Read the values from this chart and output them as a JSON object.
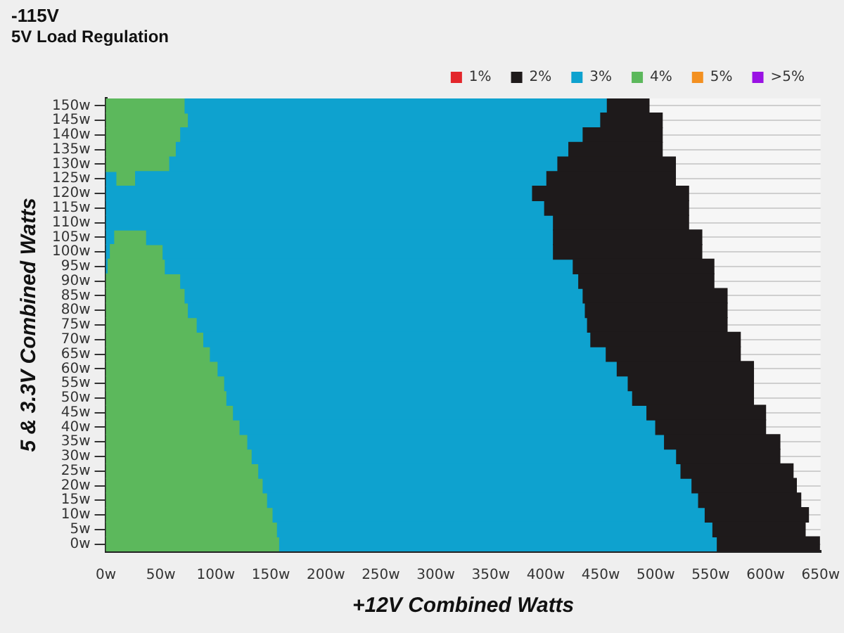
{
  "chart_data": {
    "type": "bar",
    "orientation": "horizontal",
    "title": "-115V",
    "subtitle": "5V Load Regulation",
    "xlabel": "+12V Combined Watts",
    "ylabel": "5 & 3.3V Combined Watts",
    "categories": [
      "150w",
      "145w",
      "140w",
      "135w",
      "130w",
      "125w",
      "120w",
      "115w",
      "110w",
      "105w",
      "100w",
      "95w",
      "90w",
      "85w",
      "80w",
      "75w",
      "70w",
      "65w",
      "60w",
      "55w",
      "50w",
      "45w",
      "40w",
      "35w",
      "30w",
      "25w",
      "20w",
      "15w",
      "10w",
      "5w",
      "0w"
    ],
    "series": [
      {
        "name": "1%",
        "color": "#e3262b",
        "values": [
          null,
          null,
          null,
          null,
          null,
          null,
          null,
          null,
          null,
          null,
          null,
          null,
          null,
          null,
          null,
          null,
          null,
          null,
          null,
          null,
          null,
          null,
          null,
          null,
          null,
          null,
          null,
          null,
          null,
          null,
          null
        ]
      },
      {
        "name": "2%",
        "color": "#1e1a1b",
        "base": [
          456,
          450,
          434,
          421,
          411,
          401,
          388,
          399,
          407,
          407,
          407,
          425,
          430,
          434,
          436,
          438,
          441,
          455,
          465,
          475,
          479,
          492,
          500,
          508,
          519,
          523,
          533,
          539,
          545,
          552,
          556
        ],
        "values": [
          38,
          56,
          72,
          85,
          107,
          117,
          142,
          131,
          123,
          135,
          135,
          128,
          123,
          131,
          129,
          127,
          136,
          122,
          124,
          114,
          110,
          108,
          100,
          105,
          94,
          102,
          95,
          93,
          94,
          84,
          93
        ]
      },
      {
        "name": "3%",
        "color": "#0ea2cf",
        "base": [
          72,
          75,
          68,
          64,
          58,
          27,
          0,
          0,
          0,
          37,
          52,
          54,
          68,
          72,
          75,
          83,
          89,
          95,
          102,
          108,
          110,
          116,
          122,
          129,
          133,
          139,
          143,
          147,
          152,
          156,
          158
        ],
        "values": [
          384,
          375,
          366,
          357,
          353,
          374,
          388,
          399,
          407,
          370,
          355,
          371,
          362,
          362,
          361,
          355,
          352,
          360,
          363,
          367,
          369,
          376,
          378,
          379,
          386,
          384,
          390,
          392,
          393,
          396,
          398
        ]
      },
      {
        "name": "4%",
        "color": "#5cb85c",
        "base": [
          0,
          0,
          0,
          0,
          0,
          10,
          null,
          null,
          null,
          8,
          4,
          2,
          0,
          0,
          0,
          0,
          0,
          0,
          0,
          0,
          0,
          0,
          0,
          0,
          0,
          0,
          0,
          0,
          0,
          0,
          0
        ],
        "values": [
          72,
          75,
          68,
          64,
          58,
          17,
          null,
          null,
          null,
          29,
          48,
          52,
          68,
          72,
          75,
          83,
          89,
          95,
          102,
          108,
          110,
          116,
          122,
          129,
          133,
          139,
          143,
          147,
          152,
          156,
          158
        ]
      },
      {
        "name": "5%",
        "color": "#f39020",
        "values": [
          null,
          null,
          null,
          null,
          null,
          null,
          null,
          null,
          null,
          null,
          null,
          null,
          null,
          null,
          null,
          null,
          null,
          null,
          null,
          null,
          null,
          null,
          null,
          null,
          null,
          null,
          null,
          null,
          null,
          null,
          null
        ]
      },
      {
        "name": ">5%",
        "color": "#9a12e4",
        "values": [
          null,
          null,
          null,
          null,
          null,
          null,
          null,
          null,
          null,
          null,
          null,
          null,
          null,
          null,
          null,
          null,
          null,
          null,
          null,
          null,
          null,
          null,
          null,
          null,
          null,
          null,
          null,
          null,
          null,
          null,
          null
        ]
      },
      {
        "color": "#0ea2cf",
        "values": [
          null,
          null,
          null,
          null,
          null,
          10,
          null,
          null,
          null,
          8,
          4,
          2,
          null,
          null,
          null,
          null,
          null,
          null,
          null,
          null,
          null,
          null,
          null,
          null,
          null,
          null,
          null,
          null,
          null,
          null,
          null
        ]
      }
    ],
    "xlim": [
      0,
      650
    ],
    "xticks": [
      {
        "value": 0,
        "label": "0w"
      },
      {
        "value": 50,
        "label": "50w"
      },
      {
        "value": 100,
        "label": "100w"
      },
      {
        "value": 150,
        "label": "150w"
      },
      {
        "value": 200,
        "label": "200w"
      },
      {
        "value": 250,
        "label": "250w"
      },
      {
        "value": 300,
        "label": "300w"
      },
      {
        "value": 350,
        "label": "350w"
      },
      {
        "value": 400,
        "label": "400w"
      },
      {
        "value": 450,
        "label": "450w"
      },
      {
        "value": 500,
        "label": "500w"
      },
      {
        "value": 550,
        "label": "550w"
      },
      {
        "value": 600,
        "label": "600w"
      },
      {
        "value": 650,
        "label": "650w"
      }
    ],
    "grid": "y",
    "legend": "top right"
  }
}
